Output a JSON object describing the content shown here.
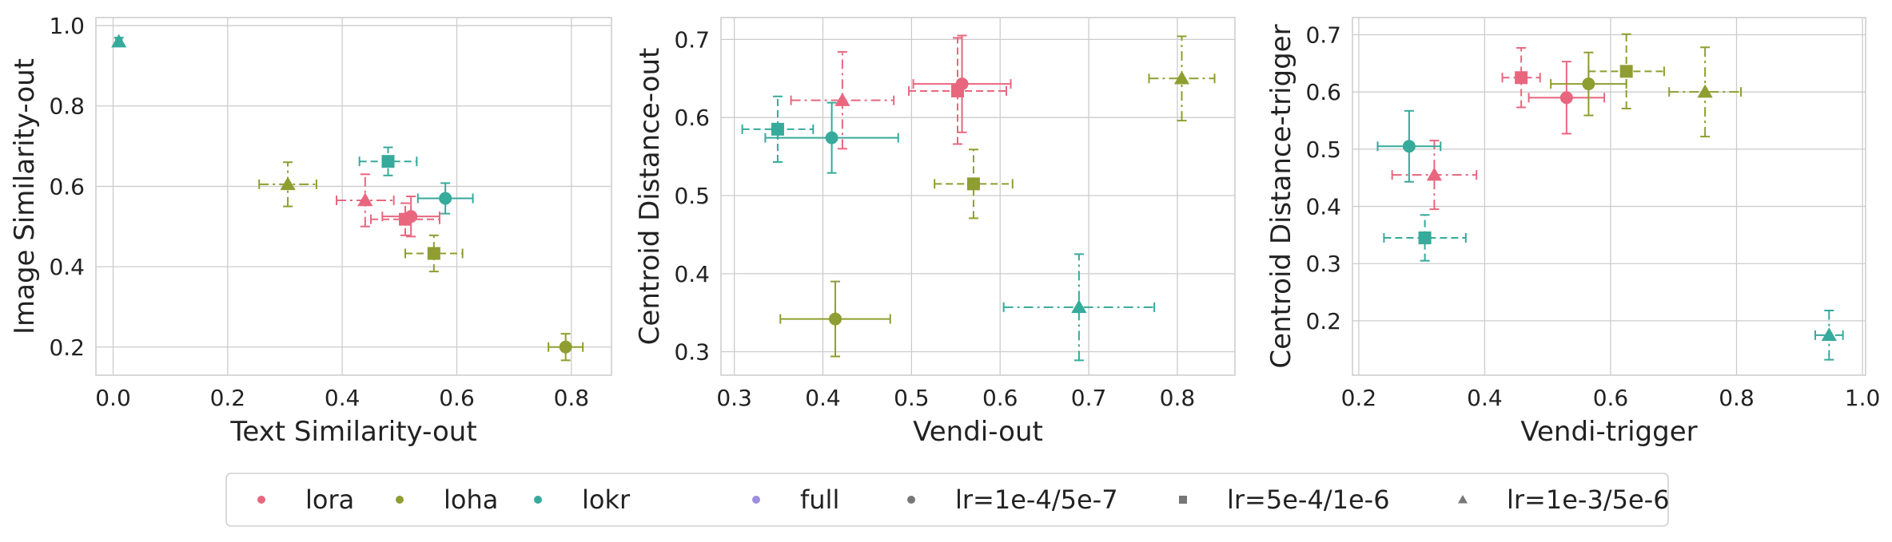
{
  "colors": {
    "lora": "#e8677f",
    "loha": "#8f9e30",
    "lokr": "#36aa9b",
    "full": "#9d8ee0",
    "lr_marker": "#777777"
  },
  "legend": [
    {
      "label": "lora",
      "kind": "color",
      "color": "#e8677f",
      "marker": "circle"
    },
    {
      "label": "loha",
      "kind": "color",
      "color": "#8f9e30",
      "marker": "circle"
    },
    {
      "label": "lokr",
      "kind": "color",
      "color": "#36aa9b",
      "marker": "circle"
    },
    {
      "label": "full",
      "kind": "color",
      "color": "#9d8ee0",
      "marker": "circle"
    },
    {
      "label": "lr=1e-4/5e-7",
      "kind": "marker",
      "color": "#777777",
      "marker": "circle"
    },
    {
      "label": "lr=5e-4/1e-6",
      "kind": "marker",
      "color": "#777777",
      "marker": "square"
    },
    {
      "label": "lr=1e-3/5e-6",
      "kind": "marker",
      "color": "#777777",
      "marker": "triangle"
    }
  ],
  "chart_data": [
    {
      "type": "scatter",
      "xlabel": "Text Similarity-out",
      "ylabel": "Image Similarity-out",
      "xlim": [
        -0.03,
        0.87
      ],
      "ylim": [
        0.13,
        1.02
      ],
      "xticks": [
        0.0,
        0.2,
        0.4,
        0.6,
        0.8
      ],
      "xtick_labels": [
        "0.0",
        "0.2",
        "0.4",
        "0.6",
        "0.8"
      ],
      "yticks": [
        0.2,
        0.4,
        0.6,
        0.8,
        1.0
      ],
      "ytick_labels": [
        "0.2",
        "0.4",
        "0.6",
        "0.8",
        "1.0"
      ],
      "grid": true,
      "points": [
        {
          "series": "lora",
          "marker": "circle",
          "x": 0.52,
          "y": 0.525,
          "xerr": 0.05,
          "yerr": 0.05
        },
        {
          "series": "lora",
          "marker": "square",
          "x": 0.51,
          "y": 0.518,
          "xerr": 0.06,
          "yerr": 0.04
        },
        {
          "series": "lora",
          "marker": "triangle",
          "x": 0.44,
          "y": 0.565,
          "xerr": 0.05,
          "yerr": 0.065
        },
        {
          "series": "loha",
          "marker": "circle",
          "x": 0.79,
          "y": 0.2,
          "xerr": 0.03,
          "yerr": 0.033
        },
        {
          "series": "loha",
          "marker": "square",
          "x": 0.56,
          "y": 0.433,
          "xerr": 0.05,
          "yerr": 0.045
        },
        {
          "series": "loha",
          "marker": "triangle",
          "x": 0.305,
          "y": 0.605,
          "xerr": 0.05,
          "yerr": 0.055
        },
        {
          "series": "lokr",
          "marker": "circle",
          "x": 0.58,
          "y": 0.57,
          "xerr": 0.048,
          "yerr": 0.038
        },
        {
          "series": "lokr",
          "marker": "square",
          "x": 0.48,
          "y": 0.662,
          "xerr": 0.05,
          "yerr": 0.035
        },
        {
          "series": "lokr",
          "marker": "triangle",
          "x": 0.01,
          "y": 0.96,
          "xerr": 0.005,
          "yerr": 0.01
        }
      ]
    },
    {
      "type": "scatter",
      "xlabel": "Vendi-out",
      "ylabel": "Centroid Distance-out",
      "xlim": [
        0.285,
        0.865
      ],
      "ylim": [
        0.27,
        0.728
      ],
      "xticks": [
        0.3,
        0.4,
        0.5,
        0.6,
        0.7,
        0.8
      ],
      "xtick_labels": [
        "0.3",
        "0.4",
        "0.5",
        "0.6",
        "0.7",
        "0.8"
      ],
      "yticks": [
        0.3,
        0.4,
        0.5,
        0.6,
        0.7
      ],
      "ytick_labels": [
        "0.3",
        "0.4",
        "0.5",
        "0.6",
        "0.7"
      ],
      "grid": true,
      "points": [
        {
          "series": "lora",
          "marker": "circle",
          "x": 0.557,
          "y": 0.643,
          "xerr": 0.055,
          "yerr": 0.062
        },
        {
          "series": "lora",
          "marker": "square",
          "x": 0.552,
          "y": 0.634,
          "xerr": 0.055,
          "yerr": 0.068
        },
        {
          "series": "lora",
          "marker": "triangle",
          "x": 0.422,
          "y": 0.622,
          "xerr": 0.058,
          "yerr": 0.062
        },
        {
          "series": "loha",
          "marker": "circle",
          "x": 0.414,
          "y": 0.342,
          "xerr": 0.062,
          "yerr": 0.048
        },
        {
          "series": "loha",
          "marker": "square",
          "x": 0.57,
          "y": 0.515,
          "xerr": 0.044,
          "yerr": 0.044
        },
        {
          "series": "loha",
          "marker": "triangle",
          "x": 0.805,
          "y": 0.65,
          "xerr": 0.037,
          "yerr": 0.054
        },
        {
          "series": "lokr",
          "marker": "circle",
          "x": 0.41,
          "y": 0.574,
          "xerr": 0.075,
          "yerr": 0.045
        },
        {
          "series": "lokr",
          "marker": "square",
          "x": 0.349,
          "y": 0.585,
          "xerr": 0.04,
          "yerr": 0.042
        },
        {
          "series": "lokr",
          "marker": "triangle",
          "x": 0.689,
          "y": 0.357,
          "xerr": 0.085,
          "yerr": 0.068
        }
      ]
    },
    {
      "type": "scatter",
      "xlabel": "Vendi-trigger",
      "ylabel": "Centroid Distance-trigger",
      "xlim": [
        0.19,
        1.005
      ],
      "ylim": [
        0.105,
        0.73
      ],
      "xticks": [
        0.2,
        0.4,
        0.6,
        0.8,
        1.0
      ],
      "xtick_labels": [
        "0.2",
        "0.4",
        "0.6",
        "0.8",
        "1.0"
      ],
      "yticks": [
        0.2,
        0.3,
        0.4,
        0.5,
        0.6,
        0.7
      ],
      "ytick_labels": [
        "0.2",
        "0.3",
        "0.4",
        "0.5",
        "0.6",
        "0.7"
      ],
      "grid": true,
      "points": [
        {
          "series": "lora",
          "marker": "circle",
          "x": 0.53,
          "y": 0.59,
          "xerr": 0.06,
          "yerr": 0.063
        },
        {
          "series": "lora",
          "marker": "square",
          "x": 0.458,
          "y": 0.625,
          "xerr": 0.03,
          "yerr": 0.052
        },
        {
          "series": "lora",
          "marker": "triangle",
          "x": 0.32,
          "y": 0.455,
          "xerr": 0.067,
          "yerr": 0.06
        },
        {
          "series": "loha",
          "marker": "circle",
          "x": 0.565,
          "y": 0.614,
          "xerr": 0.06,
          "yerr": 0.055
        },
        {
          "series": "loha",
          "marker": "square",
          "x": 0.625,
          "y": 0.636,
          "xerr": 0.06,
          "yerr": 0.065
        },
        {
          "series": "loha",
          "marker": "triangle",
          "x": 0.75,
          "y": 0.6,
          "xerr": 0.057,
          "yerr": 0.078
        },
        {
          "series": "lokr",
          "marker": "circle",
          "x": 0.28,
          "y": 0.505,
          "xerr": 0.05,
          "yerr": 0.062
        },
        {
          "series": "lokr",
          "marker": "square",
          "x": 0.305,
          "y": 0.345,
          "xerr": 0.065,
          "yerr": 0.04
        },
        {
          "series": "lokr",
          "marker": "triangle",
          "x": 0.947,
          "y": 0.175,
          "xerr": 0.022,
          "yerr": 0.043
        }
      ]
    }
  ]
}
